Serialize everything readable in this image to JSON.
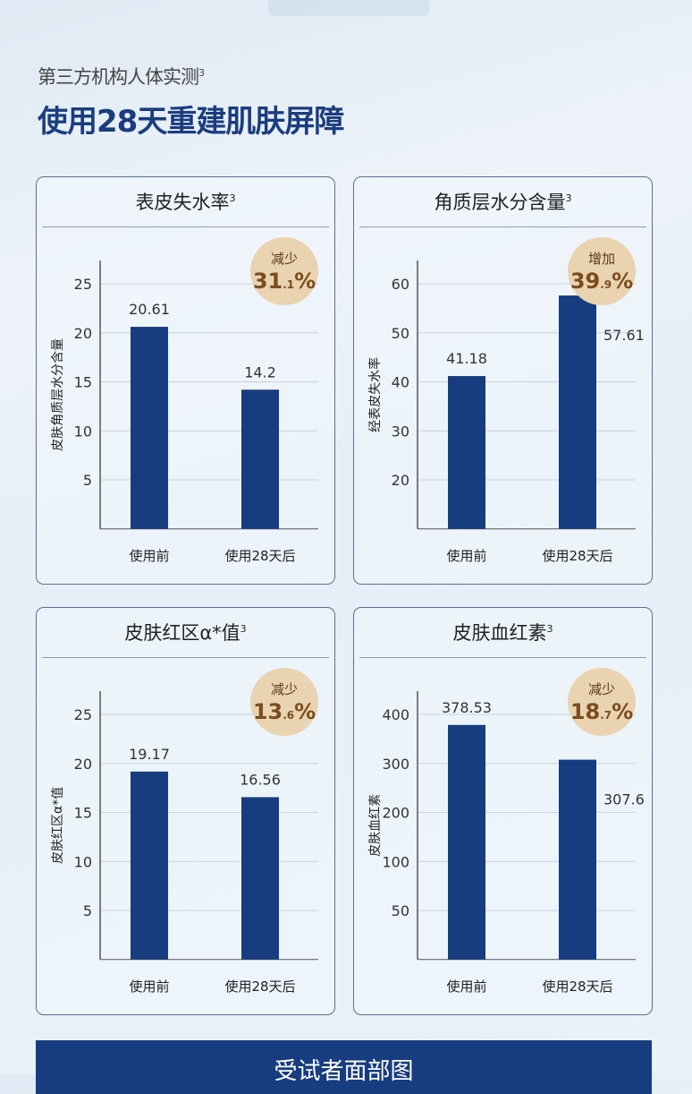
{
  "header": {
    "subtitle": "第三方机构人体实测",
    "subtitle_sup": "3",
    "title": "使用28天重建肌肤屏障"
  },
  "colors": {
    "bar": "#183c80",
    "badge": "#ead3b0",
    "badge_text": "#7a4d1f"
  },
  "chart_data": [
    {
      "type": "bar",
      "title": "表皮失水率",
      "title_sup": "3",
      "ylabel": "皮肤角质层水分含量",
      "categories": [
        "使用前",
        "使用28天后"
      ],
      "values": [
        20.61,
        14.2
      ],
      "value_labels": [
        "20.61",
        "14.2"
      ],
      "yticks": [
        5,
        10,
        15,
        20,
        25
      ],
      "ybase": 0,
      "badge": {
        "label": "减少",
        "major": "31",
        "minor": ".1",
        "pct": "%"
      },
      "right_label_side": false
    },
    {
      "type": "bar",
      "title": "角质层水分含量",
      "title_sup": "3",
      "ylabel": "经表皮失水率",
      "categories": [
        "使用前",
        "使用28天后"
      ],
      "values": [
        41.18,
        57.61
      ],
      "value_labels": [
        "41.18",
        "57.61"
      ],
      "yticks": [
        20,
        30,
        40,
        50,
        60
      ],
      "ybase": 10,
      "badge": {
        "label": "增加",
        "major": "39",
        "minor": ".9",
        "pct": "%"
      },
      "right_label_side": true
    },
    {
      "type": "bar",
      "title": "皮肤红区α*值",
      "title_sup": "3",
      "ylabel": "皮肤红区α*值",
      "categories": [
        "使用前",
        "使用28天后"
      ],
      "values": [
        19.17,
        16.56
      ],
      "value_labels": [
        "19.17",
        "16.56"
      ],
      "yticks": [
        5,
        10,
        15,
        20,
        25
      ],
      "ybase": 0,
      "badge": {
        "label": "减少",
        "major": "13",
        "minor": ".6",
        "pct": "%"
      },
      "right_label_side": false
    },
    {
      "type": "bar",
      "title": "皮肤血红素",
      "title_sup": "3",
      "ylabel": "皮肤血红素",
      "categories": [
        "使用前",
        "使用28天后"
      ],
      "values": [
        378.53,
        307.6
      ],
      "value_labels": [
        "378.53",
        "307.6"
      ],
      "yticks": [
        50,
        100,
        200,
        300,
        400
      ],
      "ybase": 0,
      "badge": {
        "label": "减少",
        "major": "18",
        "minor": ".7",
        "pct": "%"
      },
      "right_label_side": true
    }
  ],
  "banner": {
    "text": "受试者面部图"
  }
}
